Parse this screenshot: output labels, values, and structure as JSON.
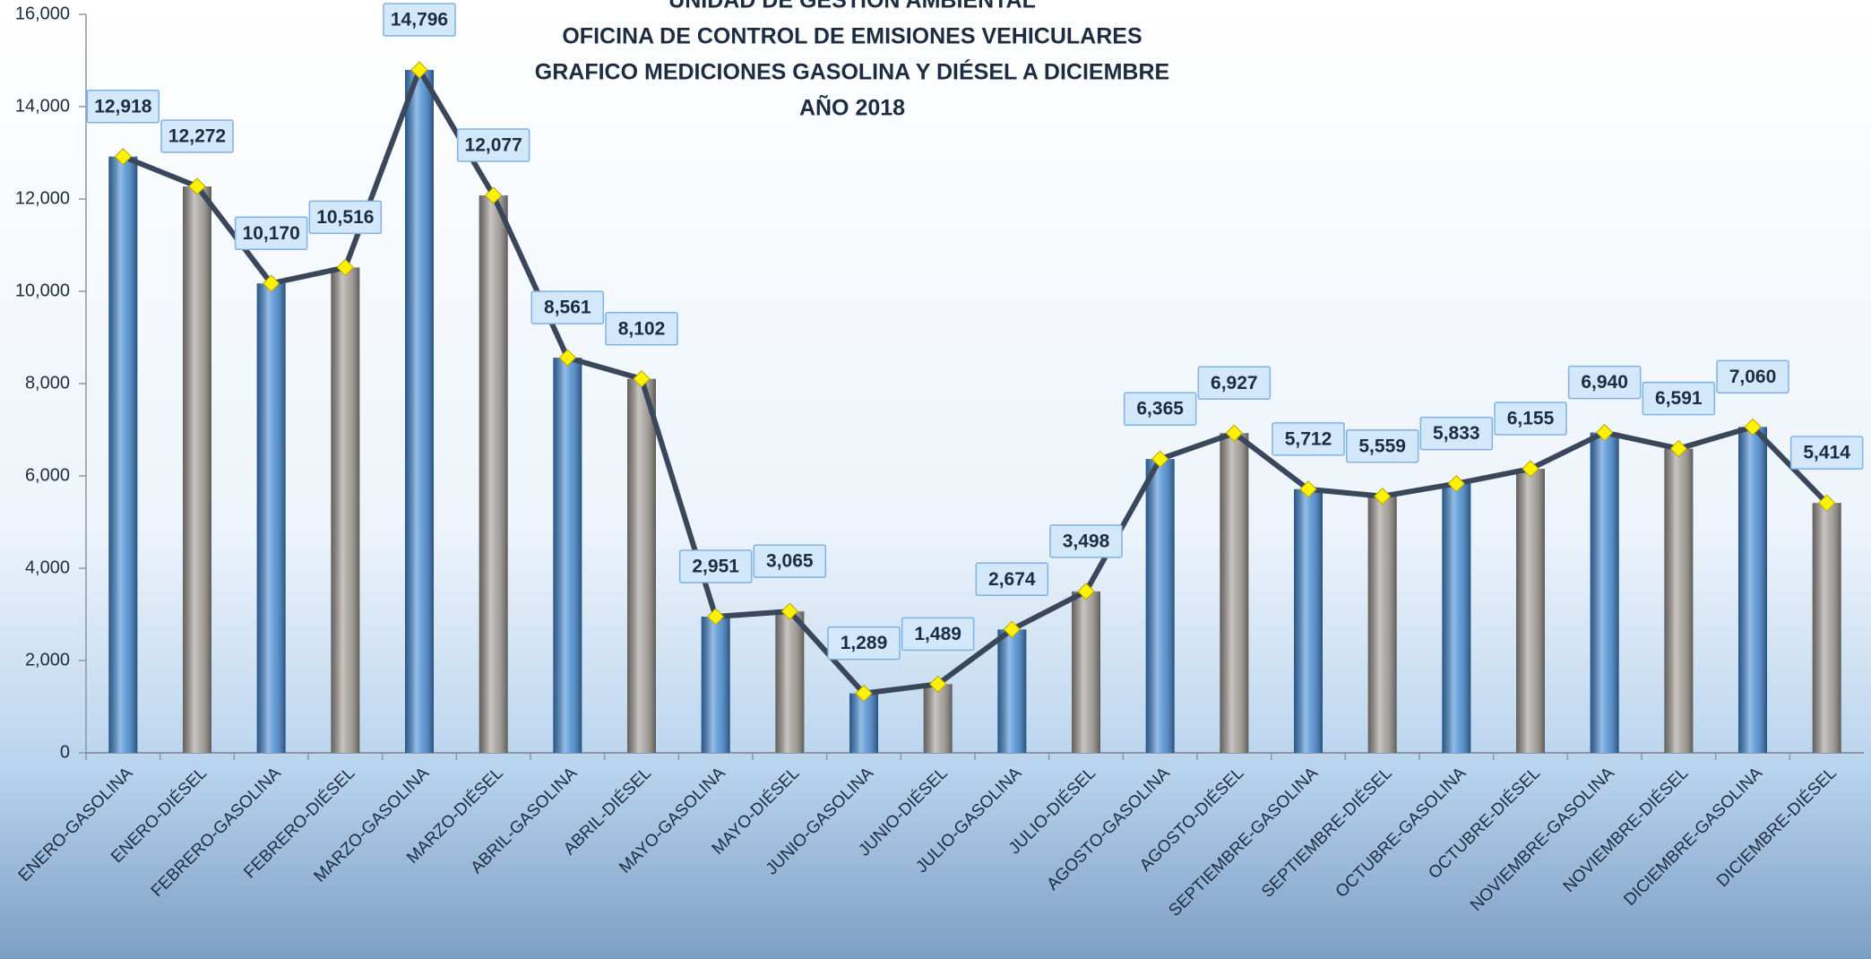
{
  "chart_data": {
    "type": "bar",
    "title": [
      "UNIDAD DE GESTIÓN AMBIENTAL",
      "OFICINA DE CONTROL DE EMISIONES VEHICULARES",
      "GRAFICO MEDICIONES GASOLINA Y DIÉSEL A DICIEMBRE",
      "AÑO 2018"
    ],
    "categories": [
      "ENERO-GASOLINA",
      "ENERO-DIÉSEL",
      "FEBRERO-GASOLINA",
      "FEBRERO-DIÉSEL",
      "MARZO-GASOLINA",
      "MARZO-DIÉSEL",
      "ABRIL-GASOLINA",
      "ABRIL-DIÉSEL",
      "MAYO-GASOLINA",
      "MAYO-DIÉSEL",
      "JUNIO-GASOLINA",
      "JUNIO-DIÉSEL",
      "JULIO-GASOLINA",
      "JULIO-DIÉSEL",
      "AGOSTO-GASOLINA",
      "AGOSTO-DIÉSEL",
      "SEPTIEMBRE-GASOLINA",
      "SEPTIEMBRE-DIÉSEL",
      "OCTUBRE-GASOLINA",
      "OCTUBRE-DIÉSEL",
      "NOVIEMBRE-GASOLINA",
      "NOVIEMBRE-DIÉSEL",
      "DICIEMBRE-GASOLINA",
      "DICIEMBRE-DIÉSEL"
    ],
    "values": [
      12918,
      12272,
      10170,
      10516,
      14796,
      12077,
      8561,
      8102,
      2951,
      3065,
      1289,
      1489,
      2674,
      3498,
      6365,
      6927,
      5712,
      5559,
      5833,
      6155,
      6940,
      6591,
      7060,
      5414
    ],
    "value_labels": [
      "12,918",
      "12,272",
      "10,170",
      "10,516",
      "14,796",
      "12,077",
      "8,561",
      "8,102",
      "2,951",
      "3,065",
      "1,289",
      "1,489",
      "2,674",
      "3,498",
      "6,365",
      "6,927",
      "5,712",
      "5,559",
      "5,833",
      "6,155",
      "6,940",
      "6,591",
      "7,060",
      "5,414"
    ],
    "bar_colors": [
      "#3f86cf",
      "#9a9590",
      "#3f86cf",
      "#9a9590",
      "#3f86cf",
      "#9a9590",
      "#3f86cf",
      "#9a9590",
      "#3f86cf",
      "#9a9590",
      "#3f86cf",
      "#9a9590",
      "#3f86cf",
      "#9a9590",
      "#3f86cf",
      "#9a9590",
      "#3f86cf",
      "#9a9590",
      "#3f86cf",
      "#9a9590",
      "#3f86cf",
      "#9a9590",
      "#3f86cf",
      "#9a9590"
    ],
    "line_color": "#3a475a",
    "marker_color": "#fff200",
    "ylim": [
      0,
      16000
    ],
    "yticks": [
      0,
      {
        "value": 2000,
        "label": "2,000"
      },
      {
        "value": 4000,
        "label": "4,000"
      },
      {
        "value": 6000,
        "label": "6,000"
      },
      {
        "value": 8000,
        "label": "8,000"
      },
      {
        "value": 10000,
        "label": "10,000"
      },
      {
        "value": 12000,
        "label": "12,000"
      },
      {
        "value": 14000,
        "label": "14,000"
      },
      {
        "value": 16000,
        "label": "16,000"
      }
    ]
  }
}
